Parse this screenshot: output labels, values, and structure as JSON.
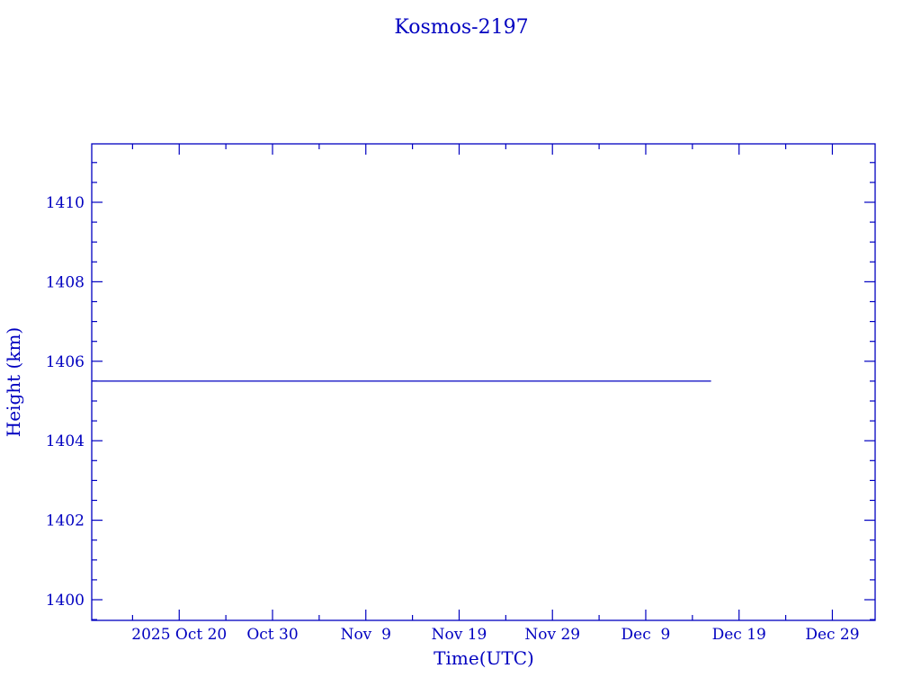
{
  "chart_data": {
    "type": "line",
    "title": "Kosmos-2197",
    "xlabel": "Time(UTC)",
    "ylabel": "Height (km)",
    "xlim": [
      "2025-10-10T15:00",
      "2026-01-02T14:00"
    ],
    "ylim": [
      1399.48,
      1411.47
    ],
    "x_ticks": [
      {
        "date": "2025-10-20",
        "label": "2025 Oct 20"
      },
      {
        "date": "2025-10-30",
        "label": "Oct 30"
      },
      {
        "date": "2025-11-09",
        "label": "Nov  9"
      },
      {
        "date": "2025-11-19",
        "label": "Nov 19"
      },
      {
        "date": "2025-11-29",
        "label": "Nov 29"
      },
      {
        "date": "2025-12-09",
        "label": "Dec  9"
      },
      {
        "date": "2025-12-19",
        "label": "Dec 19"
      },
      {
        "date": "2025-12-29",
        "label": "Dec 29"
      }
    ],
    "y_ticks": [
      1400,
      1402,
      1404,
      1406,
      1408,
      1410
    ],
    "y_tick_labels": [
      "1400",
      "1402",
      "1404",
      "1406",
      "1408",
      "1410"
    ],
    "grid": false,
    "series": [
      {
        "x": [
          "2025-10-10T15:00",
          "2025-12-16T00:00"
        ],
        "y": [
          1405.5,
          1405.5
        ]
      }
    ],
    "color": "#0000c0"
  }
}
